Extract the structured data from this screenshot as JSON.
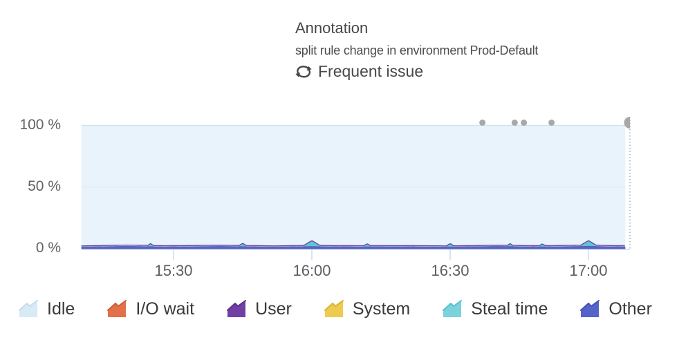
{
  "annotation": {
    "title": "Annotation",
    "description": "split rule change in environment Prod-Default",
    "frequent_label": "Frequent issue"
  },
  "chart_data": {
    "type": "area",
    "stacked": true,
    "unit": "%",
    "title": "",
    "ylim": [
      0,
      100
    ],
    "y_ticks": [
      "100 %",
      "50 %",
      "0 %"
    ],
    "x_ticks": [
      "15:30",
      "16:00",
      "16:30",
      "17:00"
    ],
    "x_start": "15:10",
    "x_end": "17:08",
    "cursor_time": "17:09",
    "grid": "horizontal",
    "legend_position": "bottom",
    "series": [
      {
        "name": "Idle",
        "color": "#d8eaf6",
        "edge": "#c3dcee",
        "fill": "#e9f3fb",
        "fill_edge": "#d0e4f0",
        "shape": "area-full",
        "approx_percent": 98
      },
      {
        "name": "I/O wait",
        "color": "#e2714a",
        "edge": "#c95d36",
        "shape": "specks",
        "points": [
          [
            "15:14",
            0.8
          ],
          [
            "15:35",
            0.7
          ],
          [
            "16:05",
            0.7
          ],
          [
            "16:22",
            0.6
          ],
          [
            "16:48",
            0.7
          ],
          [
            "17:03",
            0.6
          ]
        ]
      },
      {
        "name": "User",
        "color": "#7240a4",
        "edge": "#5c2f8a",
        "line_color": "#6b4aa3",
        "shape": "top-line",
        "approx_percent": 1
      },
      {
        "name": "System",
        "color": "#edcb4f",
        "edge": "#d9b132",
        "shape": "hidden",
        "approx_percent": 0.3
      },
      {
        "name": "Steal time",
        "color": "#7bd2dc",
        "edge": "#57c1d1",
        "fill": "#5fc6d4",
        "shape": "bumps",
        "points": [
          [
            "15:25",
            1.0
          ],
          [
            "15:45",
            1.3
          ],
          [
            "16:00",
            3.5
          ],
          [
            "16:12",
            1.0
          ],
          [
            "16:30",
            1.1
          ],
          [
            "16:43",
            1.0
          ],
          [
            "16:50",
            0.9
          ],
          [
            "17:00",
            3.5
          ]
        ]
      },
      {
        "name": "Other",
        "color": "#5564c8",
        "edge": "#4150b6",
        "fill": "#5a63bf",
        "shape": "band",
        "points": [
          [
            "15:10",
            1.4
          ],
          [
            "15:20",
            1.9
          ],
          [
            "15:28",
            1.5
          ],
          [
            "15:40",
            1.8
          ],
          [
            "15:52",
            1.4
          ],
          [
            "16:00",
            1.7
          ],
          [
            "16:10",
            1.5
          ],
          [
            "16:18",
            1.6
          ],
          [
            "16:30",
            1.4
          ],
          [
            "16:40",
            1.8
          ],
          [
            "16:50",
            1.5
          ],
          [
            "17:00",
            1.9
          ],
          [
            "17:05",
            1.6
          ],
          [
            "17:08",
            1.5
          ]
        ]
      }
    ],
    "annotation_markers": {
      "color": "#a8a8a8",
      "times": [
        "16:37",
        "16:44",
        "16:46",
        "16:52"
      ],
      "highlighted_time": "17:09"
    },
    "colors": {
      "grid_50": "#dbe9f2",
      "axis_line": "#bed4e7",
      "tick_mark": "#c9dcee",
      "cursor_dotted": "#a6abb0"
    }
  }
}
